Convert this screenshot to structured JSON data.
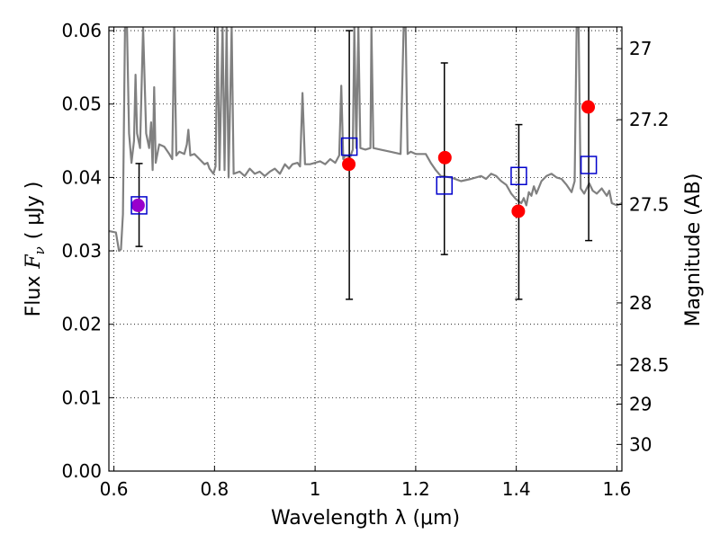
{
  "chart_data": {
    "type": "scatter",
    "title": "",
    "xlabel": "Wavelength  λ (μm)",
    "ylabel": "Flux  F_ν  ( μJy )",
    "ylabel_parts": {
      "prefix": "Flux",
      "symbol": "F",
      "subscript": "ν",
      "unit": "( μJy )"
    },
    "y2label": "Magnitude (AB)",
    "xlim": [
      0.59,
      1.61
    ],
    "ylim": [
      0.0,
      0.0605
    ],
    "grid": true,
    "x_ticks": [
      {
        "value": 0.6,
        "label": "0.6"
      },
      {
        "value": 0.8,
        "label": "0.8"
      },
      {
        "value": 1.0,
        "label": "1"
      },
      {
        "value": 1.2,
        "label": "1.2"
      },
      {
        "value": 1.4,
        "label": "1.4"
      },
      {
        "value": 1.6,
        "label": "1.6"
      }
    ],
    "y_ticks": [
      {
        "value": 0.0,
        "label": "0.00"
      },
      {
        "value": 0.01,
        "label": "0.01"
      },
      {
        "value": 0.02,
        "label": "0.02"
      },
      {
        "value": 0.03,
        "label": "0.03"
      },
      {
        "value": 0.04,
        "label": "0.04"
      },
      {
        "value": 0.05,
        "label": "0.05"
      },
      {
        "value": 0.06,
        "label": "0.06"
      }
    ],
    "y2_ticks": [
      {
        "value": 27.0,
        "label": "27"
      },
      {
        "value": 27.2,
        "label": "27.2"
      },
      {
        "value": 27.5,
        "label": "27.5"
      },
      {
        "value": 28.0,
        "label": "28"
      },
      {
        "value": 28.5,
        "label": "28.5"
      },
      {
        "value": 29.0,
        "label": "29"
      },
      {
        "value": 30.0,
        "label": "30"
      }
    ],
    "model_spectrum": {
      "color": "#808080",
      "points": [
        [
          0.59,
          0.0327
        ],
        [
          0.604,
          0.0325
        ],
        [
          0.61,
          0.03
        ],
        [
          0.614,
          0.0302
        ],
        [
          0.618,
          0.035
        ],
        [
          0.622,
          0.0605
        ],
        [
          0.626,
          0.0605
        ],
        [
          0.63,
          0.046
        ],
        [
          0.635,
          0.042
        ],
        [
          0.64,
          0.045
        ],
        [
          0.643,
          0.054
        ],
        [
          0.646,
          0.046
        ],
        [
          0.652,
          0.044
        ],
        [
          0.658,
          0.0605
        ],
        [
          0.664,
          0.046
        ],
        [
          0.67,
          0.044
        ],
        [
          0.674,
          0.0475
        ],
        [
          0.677,
          0.041
        ],
        [
          0.68,
          0.0523
        ],
        [
          0.683,
          0.042
        ],
        [
          0.69,
          0.0445
        ],
        [
          0.7,
          0.0442
        ],
        [
          0.71,
          0.0432
        ],
        [
          0.716,
          0.0425
        ],
        [
          0.72,
          0.0605
        ],
        [
          0.724,
          0.043
        ],
        [
          0.73,
          0.0435
        ],
        [
          0.74,
          0.0432
        ],
        [
          0.745,
          0.0445
        ],
        [
          0.748,
          0.0465
        ],
        [
          0.752,
          0.043
        ],
        [
          0.76,
          0.0432
        ],
        [
          0.77,
          0.0425
        ],
        [
          0.78,
          0.0418
        ],
        [
          0.786,
          0.042
        ],
        [
          0.79,
          0.0412
        ],
        [
          0.798,
          0.0405
        ],
        [
          0.802,
          0.0415
        ],
        [
          0.806,
          0.0605
        ],
        [
          0.81,
          0.041
        ],
        [
          0.816,
          0.0605
        ],
        [
          0.82,
          0.041
        ],
        [
          0.824,
          0.0605
        ],
        [
          0.828,
          0.04
        ],
        [
          0.834,
          0.0605
        ],
        [
          0.838,
          0.0405
        ],
        [
          0.85,
          0.0408
        ],
        [
          0.86,
          0.0402
        ],
        [
          0.87,
          0.0412
        ],
        [
          0.88,
          0.0405
        ],
        [
          0.89,
          0.0408
        ],
        [
          0.9,
          0.0402
        ],
        [
          0.91,
          0.0408
        ],
        [
          0.92,
          0.0412
        ],
        [
          0.93,
          0.0405
        ],
        [
          0.94,
          0.0418
        ],
        [
          0.948,
          0.0412
        ],
        [
          0.955,
          0.0418
        ],
        [
          0.965,
          0.042
        ],
        [
          0.97,
          0.0415
        ],
        [
          0.975,
          0.0515
        ],
        [
          0.98,
          0.0418
        ],
        [
          0.99,
          0.0418
        ],
        [
          1.0,
          0.042
        ],
        [
          1.01,
          0.0422
        ],
        [
          1.02,
          0.0418
        ],
        [
          1.03,
          0.0425
        ],
        [
          1.04,
          0.042
        ],
        [
          1.048,
          0.043
        ],
        [
          1.052,
          0.0525
        ],
        [
          1.056,
          0.0425
        ],
        [
          1.06,
          0.043
        ],
        [
          1.07,
          0.0428
        ],
        [
          1.075,
          0.0438
        ],
        [
          1.078,
          0.0605
        ],
        [
          1.082,
          0.044
        ],
        [
          1.086,
          0.0605
        ],
        [
          1.09,
          0.044
        ],
        [
          1.1,
          0.0438
        ],
        [
          1.11,
          0.044
        ],
        [
          1.112,
          0.0605
        ],
        [
          1.116,
          0.044
        ],
        [
          1.13,
          0.0438
        ],
        [
          1.15,
          0.0435
        ],
        [
          1.17,
          0.0432
        ],
        [
          1.176,
          0.0605
        ],
        [
          1.18,
          0.0605
        ],
        [
          1.184,
          0.0432
        ],
        [
          1.19,
          0.0435
        ],
        [
          1.2,
          0.0432
        ],
        [
          1.22,
          0.0432
        ],
        [
          1.23,
          0.042
        ],
        [
          1.24,
          0.041
        ],
        [
          1.25,
          0.0402
        ],
        [
          1.27,
          0.04
        ],
        [
          1.29,
          0.0395
        ],
        [
          1.31,
          0.0398
        ],
        [
          1.33,
          0.0402
        ],
        [
          1.34,
          0.0398
        ],
        [
          1.35,
          0.0405
        ],
        [
          1.36,
          0.0402
        ],
        [
          1.37,
          0.0395
        ],
        [
          1.38,
          0.039
        ],
        [
          1.39,
          0.0378
        ],
        [
          1.4,
          0.037
        ],
        [
          1.41,
          0.0365
        ],
        [
          1.415,
          0.0372
        ],
        [
          1.42,
          0.0362
        ],
        [
          1.425,
          0.038
        ],
        [
          1.43,
          0.0375
        ],
        [
          1.435,
          0.0388
        ],
        [
          1.44,
          0.0378
        ],
        [
          1.45,
          0.0395
        ],
        [
          1.46,
          0.0402
        ],
        [
          1.47,
          0.0405
        ],
        [
          1.48,
          0.04
        ],
        [
          1.49,
          0.0398
        ],
        [
          1.5,
          0.039
        ],
        [
          1.51,
          0.038
        ],
        [
          1.516,
          0.0395
        ],
        [
          1.52,
          0.0605
        ],
        [
          1.524,
          0.0605
        ],
        [
          1.528,
          0.0385
        ],
        [
          1.535,
          0.0378
        ],
        [
          1.545,
          0.0392
        ],
        [
          1.552,
          0.0382
        ],
        [
          1.56,
          0.0378
        ],
        [
          1.57,
          0.0385
        ],
        [
          1.58,
          0.0375
        ],
        [
          1.585,
          0.0382
        ],
        [
          1.59,
          0.0365
        ],
        [
          1.6,
          0.0362
        ],
        [
          1.61,
          0.0365
        ]
      ]
    },
    "series": [
      {
        "role": "observed",
        "marker": "circle",
        "color": "#ff0000",
        "points": [
          {
            "x": 0.648,
            "y": 0.0362
          },
          {
            "x": 1.067,
            "y": 0.0418
          },
          {
            "x": 1.258,
            "y": 0.0427
          },
          {
            "x": 1.404,
            "y": 0.0354
          },
          {
            "x": 1.543,
            "y": 0.0496
          }
        ]
      },
      {
        "role": "model-bands",
        "marker": "square-open",
        "color": "#0000cc",
        "points": [
          {
            "x": 0.65,
            "y": 0.0362,
            "err": [
              0.0306,
              0.0419
            ]
          },
          {
            "x": 1.068,
            "y": 0.0442,
            "err": [
              0.0234,
              0.06
            ]
          },
          {
            "x": 1.257,
            "y": 0.0389,
            "err": [
              0.0295,
              0.0556
            ]
          },
          {
            "x": 1.405,
            "y": 0.0402,
            "err": [
              0.0234,
              0.0472
            ]
          },
          {
            "x": 1.544,
            "y": 0.0417,
            "err": [
              0.0314,
              0.0605
            ]
          }
        ]
      }
    ],
    "overlap_color": "#9900cc",
    "errorbar_color": "#000000"
  }
}
